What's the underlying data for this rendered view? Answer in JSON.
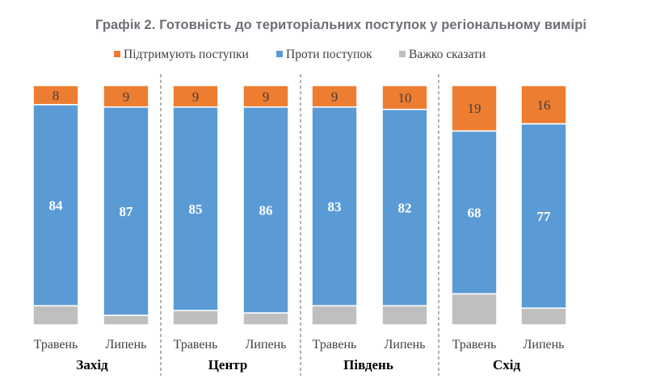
{
  "chart_data": {
    "type": "bar",
    "stacked": true,
    "title": "Графік 2. Готовність до територіальних поступок у регіональному вимірі",
    "legend_position": "top",
    "groups": [
      "Захід",
      "Центр",
      "Південь",
      "Схід"
    ],
    "categories": [
      "Травень",
      "Липень",
      "Травень",
      "Липень",
      "Травень",
      "Липень",
      "Травень",
      "Липень"
    ],
    "series": [
      {
        "name": "Важко сказати",
        "color": "#bfbfbf",
        "values": [
          8,
          4,
          6,
          5,
          8,
          8,
          13,
          7
        ]
      },
      {
        "name": "Проти поступок",
        "color": "#5b9bd5",
        "values": [
          84,
          87,
          85,
          86,
          83,
          82,
          68,
          77
        ]
      },
      {
        "name": "Підтримують поступки",
        "color": "#ed7d31",
        "values": [
          8,
          9,
          9,
          9,
          9,
          10,
          19,
          16
        ]
      }
    ],
    "legend_order": [
      "Підтримують поступки",
      "Проти поступок",
      "Важко сказати"
    ],
    "ylim": [
      0,
      100
    ],
    "grid": false,
    "label_colors": {
      "Проти поступок": "#ffffff",
      "Підтримують поступки": "#404040"
    }
  }
}
